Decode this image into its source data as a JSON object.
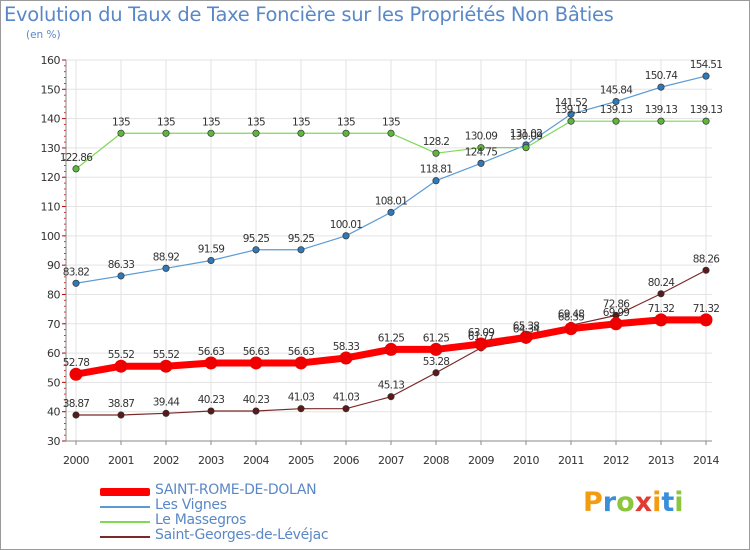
{
  "title": "Evolution du Taux de Taxe Foncière sur les Propriétés Non Bâties",
  "unit": "(en %)",
  "logo": [
    "P",
    "r",
    "o",
    "x",
    "i",
    "t",
    "i"
  ],
  "chart_data": {
    "type": "line",
    "ylim": [
      30,
      160
    ],
    "yticks": [
      30,
      40,
      50,
      60,
      70,
      80,
      90,
      100,
      110,
      120,
      130,
      140,
      150,
      160
    ],
    "categories": [
      "2000",
      "2001",
      "2002",
      "2003",
      "2004",
      "2005",
      "2006",
      "2007",
      "2008",
      "2009",
      "2010",
      "2011",
      "2012",
      "2013",
      "2014"
    ],
    "series": [
      {
        "name": "Les Vignes",
        "color": "#5b9bd5",
        "marker": "#2f79b9",
        "width": 1.2,
        "values": [
          83.82,
          86.33,
          88.92,
          91.59,
          95.25,
          95.25,
          100.01,
          108.01,
          118.81,
          124.75,
          131.02,
          141.52,
          145.84,
          150.74,
          154.51
        ],
        "labels": [
          "83.82",
          "86.33",
          "88.92",
          "91.59",
          "95.25",
          "95.25",
          "100.01",
          "108.01",
          "118.81",
          "124.75",
          "131.02",
          "141.52",
          "145.84",
          "150.74",
          "154.51"
        ]
      },
      {
        "name": "Le Massegros",
        "color": "#7ed957",
        "marker": "#5cb838",
        "width": 1.2,
        "values": [
          122.86,
          135,
          135,
          135,
          135,
          135,
          135,
          135,
          128.2,
          130.09,
          130.09,
          139.13,
          139.13,
          139.13,
          139.13
        ],
        "labels": [
          "122.86",
          "135",
          "135",
          "135",
          "135",
          "135",
          "135",
          "135",
          "128.2",
          "130.09",
          "130.09",
          "139.13",
          "139.13",
          "139.13",
          "139.13"
        ]
      },
      {
        "name": "Saint-Georges-de-Lévéjac",
        "color": "#7a2a2a",
        "marker": "#5a1a1a",
        "width": 1.2,
        "values": [
          38.87,
          38.87,
          39.44,
          40.23,
          40.23,
          41.03,
          41.03,
          45.13,
          53.28,
          61.77,
          64.34,
          69.48,
          72.86,
          80.24,
          88.26
        ],
        "labels": [
          "38.87",
          "38.87",
          "39.44",
          "40.23",
          "40.23",
          "41.03",
          "41.03",
          "45.13",
          "53.28",
          "61.77",
          "64.34",
          "69.48",
          "72.86",
          "80.24",
          "88.26"
        ]
      },
      {
        "name": "SAINT-ROME-DE-DOLAN",
        "color": "#ff0000",
        "marker": "#ee0000",
        "width": 7,
        "values": [
          52.78,
          55.52,
          55.52,
          56.63,
          56.63,
          56.63,
          58.33,
          61.25,
          61.25,
          63.09,
          65.38,
          68.35,
          69.99,
          71.32,
          71.32
        ],
        "labels": [
          "52.78",
          "55.52",
          "55.52",
          "56.63",
          "56.63",
          "56.63",
          "58.33",
          "61.25",
          "61.25",
          "63.09",
          "65.38",
          "68.35",
          "69.99",
          "71.32",
          "71.32"
        ]
      }
    ]
  },
  "legend": [
    {
      "name": "SAINT-ROME-DE-DOLAN",
      "color": "#ff0000",
      "thick": true
    },
    {
      "name": "Les Vignes",
      "color": "#5b9bd5",
      "thick": false
    },
    {
      "name": "Le Massegros",
      "color": "#7ed957",
      "thick": false
    },
    {
      "name": "Saint-Georges-de-Lévéjac",
      "color": "#7a2a2a",
      "thick": false
    }
  ]
}
